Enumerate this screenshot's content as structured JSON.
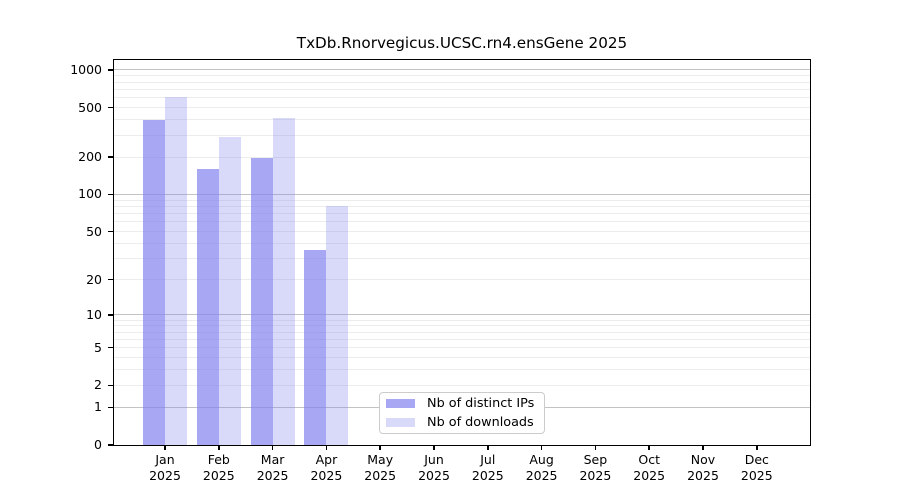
{
  "figure": {
    "background": "#ffffff"
  },
  "chart_data": {
    "type": "bar",
    "title": "TxDb.Rnorvegicus.UCSC.rn4.ensGene 2025",
    "xlabel": "",
    "ylabel": "",
    "y_scale": "log1p",
    "ylim": [
      0,
      1200
    ],
    "y_ticks": [
      0,
      1,
      2,
      5,
      10,
      20,
      50,
      100,
      200,
      500,
      1000
    ],
    "grid": "horizontal log gridlines, major at powers of 10, minor at 2-9 multiples",
    "legend_position": "inside axes, lower center-left",
    "year": "2025",
    "months": [
      "Jan",
      "Feb",
      "Mar",
      "Apr",
      "May",
      "Jun",
      "Jul",
      "Aug",
      "Sep",
      "Oct",
      "Nov",
      "Dec"
    ],
    "categories": [
      "Jan 2025",
      "Feb 2025",
      "Mar 2025",
      "Apr 2025",
      "May 2025",
      "Jun 2025",
      "Jul 2025",
      "Aug 2025",
      "Sep 2025",
      "Oct 2025",
      "Nov 2025",
      "Dec 2025"
    ],
    "series": [
      {
        "name": "Nb of distinct IPs",
        "color": "rgba(130,130,240,0.7)",
        "values": [
          400,
          160,
          195,
          35,
          null,
          null,
          null,
          null,
          null,
          null,
          null,
          null
        ]
      },
      {
        "name": "Nb of downloads",
        "color": "rgba(130,130,240,0.3)",
        "values": [
          610,
          290,
          415,
          80,
          null,
          null,
          null,
          null,
          null,
          null,
          null,
          null
        ]
      }
    ],
    "colors": {
      "bar_base": "#8282f0",
      "grid_major": "#c3c3c3",
      "grid_minor": "#ececec",
      "spine": "#000000",
      "text": "#000000",
      "legend_border": "#cccccc"
    }
  }
}
